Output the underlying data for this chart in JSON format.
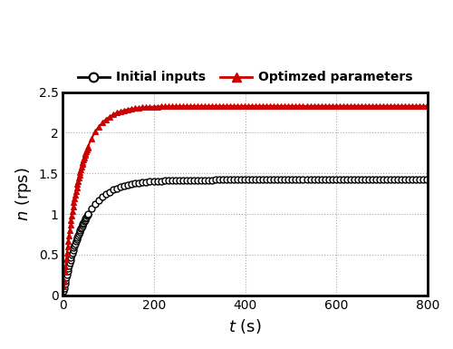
{
  "title": "",
  "xlabel_math": "$t$ (s)",
  "ylabel_math": "$n$ (rps)",
  "xlim": [
    0,
    800
  ],
  "ylim": [
    0,
    2.5
  ],
  "xticks": [
    0,
    200,
    400,
    600,
    800
  ],
  "yticks": [
    0,
    0.5,
    1.0,
    1.5,
    2.0,
    2.5
  ],
  "ytick_labels": [
    "0",
    "0.5",
    "1",
    "1.5",
    "2",
    "2.5"
  ],
  "black_asymptote": 1.42,
  "red_asymptote": 2.33,
  "k_black": 0.022,
  "k_red": 0.028,
  "black_color": "#000000",
  "red_color": "#cc0000",
  "legend_initial": "Initial inputs",
  "legend_optimized": "Optimzed parameters",
  "background_color": "#ffffff",
  "grid_color": "#aaaaaa",
  "grid_linestyle": ":",
  "linewidth": 1.5,
  "markersize": 5,
  "spine_linewidth": 2.0,
  "figsize": [
    5.0,
    3.85
  ],
  "dpi": 100
}
